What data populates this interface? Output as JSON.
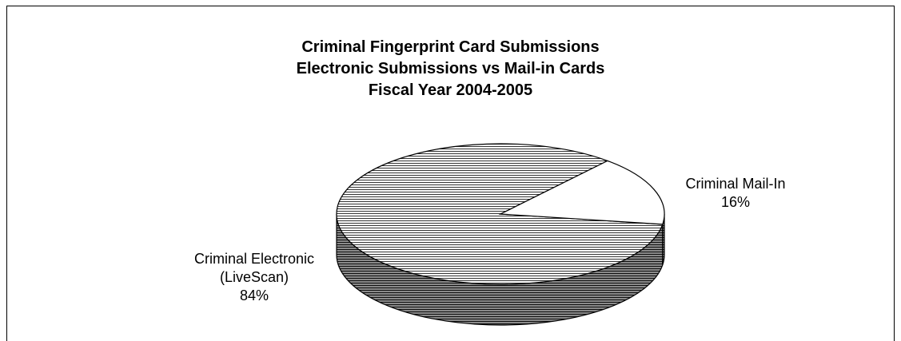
{
  "chart_data": {
    "type": "pie",
    "title": [
      "Criminal Fingerprint Card Submissions",
      "Electronic Submissions vs Mail-in Cards",
      "Fiscal Year 2004-2005"
    ],
    "slices": [
      {
        "label": [
          "Criminal Mail-In"
        ],
        "percent_label": "16%",
        "value": 16,
        "fill": "white"
      },
      {
        "label": [
          "Criminal Electronic",
          "(LiveScan)"
        ],
        "percent_label": "84%",
        "value": 84,
        "fill": "hatched"
      }
    ],
    "style": "3d-pie",
    "legend": "none"
  }
}
